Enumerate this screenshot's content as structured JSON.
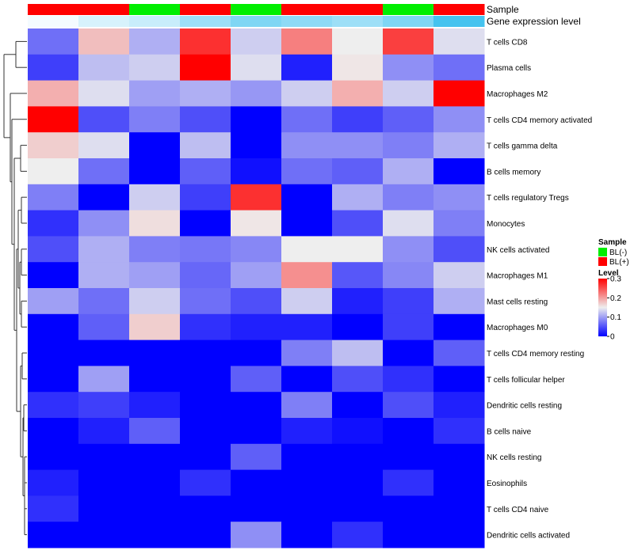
{
  "chart_data": {
    "type": "heatmap",
    "title": "",
    "annotation_titles": {
      "sample": "Sample",
      "expression": "Gene expression level"
    },
    "samples": [
      "BL(+)",
      "BL(+)",
      "BL(-)",
      "BL(+)",
      "BL(-)",
      "BL(+)",
      "BL(+)",
      "BL(-)",
      "BL(+)"
    ],
    "rows": [
      "T cells CD8",
      "Plasma cells",
      "Macrophages M2",
      "T cells CD4 memory activated",
      "T cells gamma delta",
      "B cells memory",
      "T cells regulatory  Tregs",
      "Monocytes",
      "NK cells activated",
      "Macrophages M1",
      "Mast cells resting",
      "Macrophages M0",
      "T cells CD4 memory resting",
      "T cells follicular helper",
      "Dendritic cells resting",
      "B cells naive",
      "NK cells resting",
      "Eosinophils",
      "T cells CD4 naive",
      "Dendritic cells activated"
    ],
    "values": [
      [
        0.07,
        0.18,
        0.11,
        0.27,
        0.13,
        0.22,
        0.15,
        0.26,
        0.14
      ],
      [
        0.04,
        0.12,
        0.13,
        0.3,
        0.14,
        0.02,
        0.155,
        0.09,
        0.07
      ],
      [
        0.19,
        0.14,
        0.1,
        0.11,
        0.095,
        0.13,
        0.19,
        0.13,
        0.3
      ],
      [
        0.3,
        0.05,
        0.08,
        0.05,
        0.0,
        0.07,
        0.04,
        0.06,
        0.09
      ],
      [
        0.17,
        0.14,
        0.0,
        0.12,
        0.0,
        0.09,
        0.09,
        0.08,
        0.11
      ],
      [
        0.15,
        0.07,
        0.0,
        0.06,
        0.01,
        0.07,
        0.06,
        0.11,
        0.0
      ],
      [
        0.08,
        0.0,
        0.13,
        0.04,
        0.27,
        0.0,
        0.11,
        0.08,
        0.09
      ],
      [
        0.03,
        0.09,
        0.16,
        0.0,
        0.155,
        0.0,
        0.05,
        0.14,
        0.08
      ],
      [
        0.05,
        0.11,
        0.08,
        0.075,
        0.085,
        0.15,
        0.15,
        0.09,
        0.05
      ],
      [
        0.0,
        0.11,
        0.1,
        0.065,
        0.1,
        0.21,
        0.055,
        0.085,
        0.13
      ],
      [
        0.1,
        0.07,
        0.13,
        0.07,
        0.05,
        0.13,
        0.02,
        0.04,
        0.11
      ],
      [
        0.0,
        0.06,
        0.17,
        0.03,
        0.02,
        0.02,
        0.0,
        0.04,
        0.0
      ],
      [
        0.0,
        0.0,
        0.0,
        0.0,
        0.0,
        0.08,
        0.12,
        0.0,
        0.06
      ],
      [
        0.0,
        0.1,
        0.0,
        0.0,
        0.06,
        0.0,
        0.05,
        0.03,
        0.0
      ],
      [
        0.03,
        0.04,
        0.02,
        0.0,
        0.0,
        0.08,
        0.0,
        0.05,
        0.02
      ],
      [
        0.0,
        0.02,
        0.06,
        0.0,
        0.0,
        0.02,
        0.01,
        0.0,
        0.03
      ],
      [
        0.0,
        0.0,
        0.0,
        0.0,
        0.06,
        0.0,
        0.0,
        0.0,
        0.0
      ],
      [
        0.02,
        0.0,
        0.0,
        0.03,
        0.0,
        0.0,
        0.0,
        0.03,
        0.0
      ],
      [
        0.03,
        0.0,
        0.0,
        0.0,
        0.0,
        0.0,
        0.0,
        0.0,
        0.0
      ],
      [
        0.0,
        0.0,
        0.0,
        0.0,
        0.09,
        0.0,
        0.03,
        0.0,
        0.0
      ]
    ],
    "expression_level": [
      0.02,
      0.03,
      0.035,
      0.05,
      0.06,
      0.055,
      0.05,
      0.06,
      0.08
    ],
    "legend": {
      "sample_title": "Sample",
      "sample_entries": [
        {
          "label": "BL(-)",
          "color": "#00ee00"
        },
        {
          "label": "BL(+)",
          "color": "#ff0000"
        }
      ],
      "level_title": "Level",
      "level_ticks": [
        "0.3",
        "0.2",
        "0.1",
        "0"
      ],
      "level_range": [
        0,
        0.3
      ]
    },
    "colors": {
      "low": "#0000ff",
      "mid": "#eeeeee",
      "high": "#ff0000",
      "expr_low": "#f4fbff",
      "expr_high": "#45c3ef"
    }
  }
}
